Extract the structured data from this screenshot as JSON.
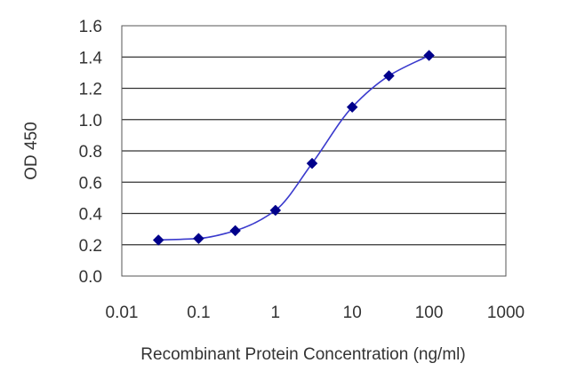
{
  "chart_data": {
    "type": "line",
    "title": "",
    "xlabel": "Recombinant Protein Concentration (ng/ml)",
    "ylabel": "OD 450",
    "x_scale": "log",
    "xlim": [
      0.01,
      1000
    ],
    "ylim": [
      0.0,
      1.6
    ],
    "x_ticks": [
      "0.01",
      "0.1",
      "1",
      "10",
      "100",
      "1000"
    ],
    "y_ticks": [
      "0.0",
      "0.2",
      "0.4",
      "0.6",
      "0.8",
      "1.0",
      "1.2",
      "1.4",
      "1.6"
    ],
    "grid": "horizontal",
    "series": [
      {
        "x": [
          0.03,
          0.1,
          0.3,
          1,
          3,
          10,
          30,
          100
        ],
        "y": [
          0.23,
          0.24,
          0.29,
          0.42,
          0.72,
          1.08,
          1.28,
          1.41
        ],
        "color": "#00008b",
        "line_color": "#3a3acd",
        "marker": "diamond"
      }
    ]
  }
}
